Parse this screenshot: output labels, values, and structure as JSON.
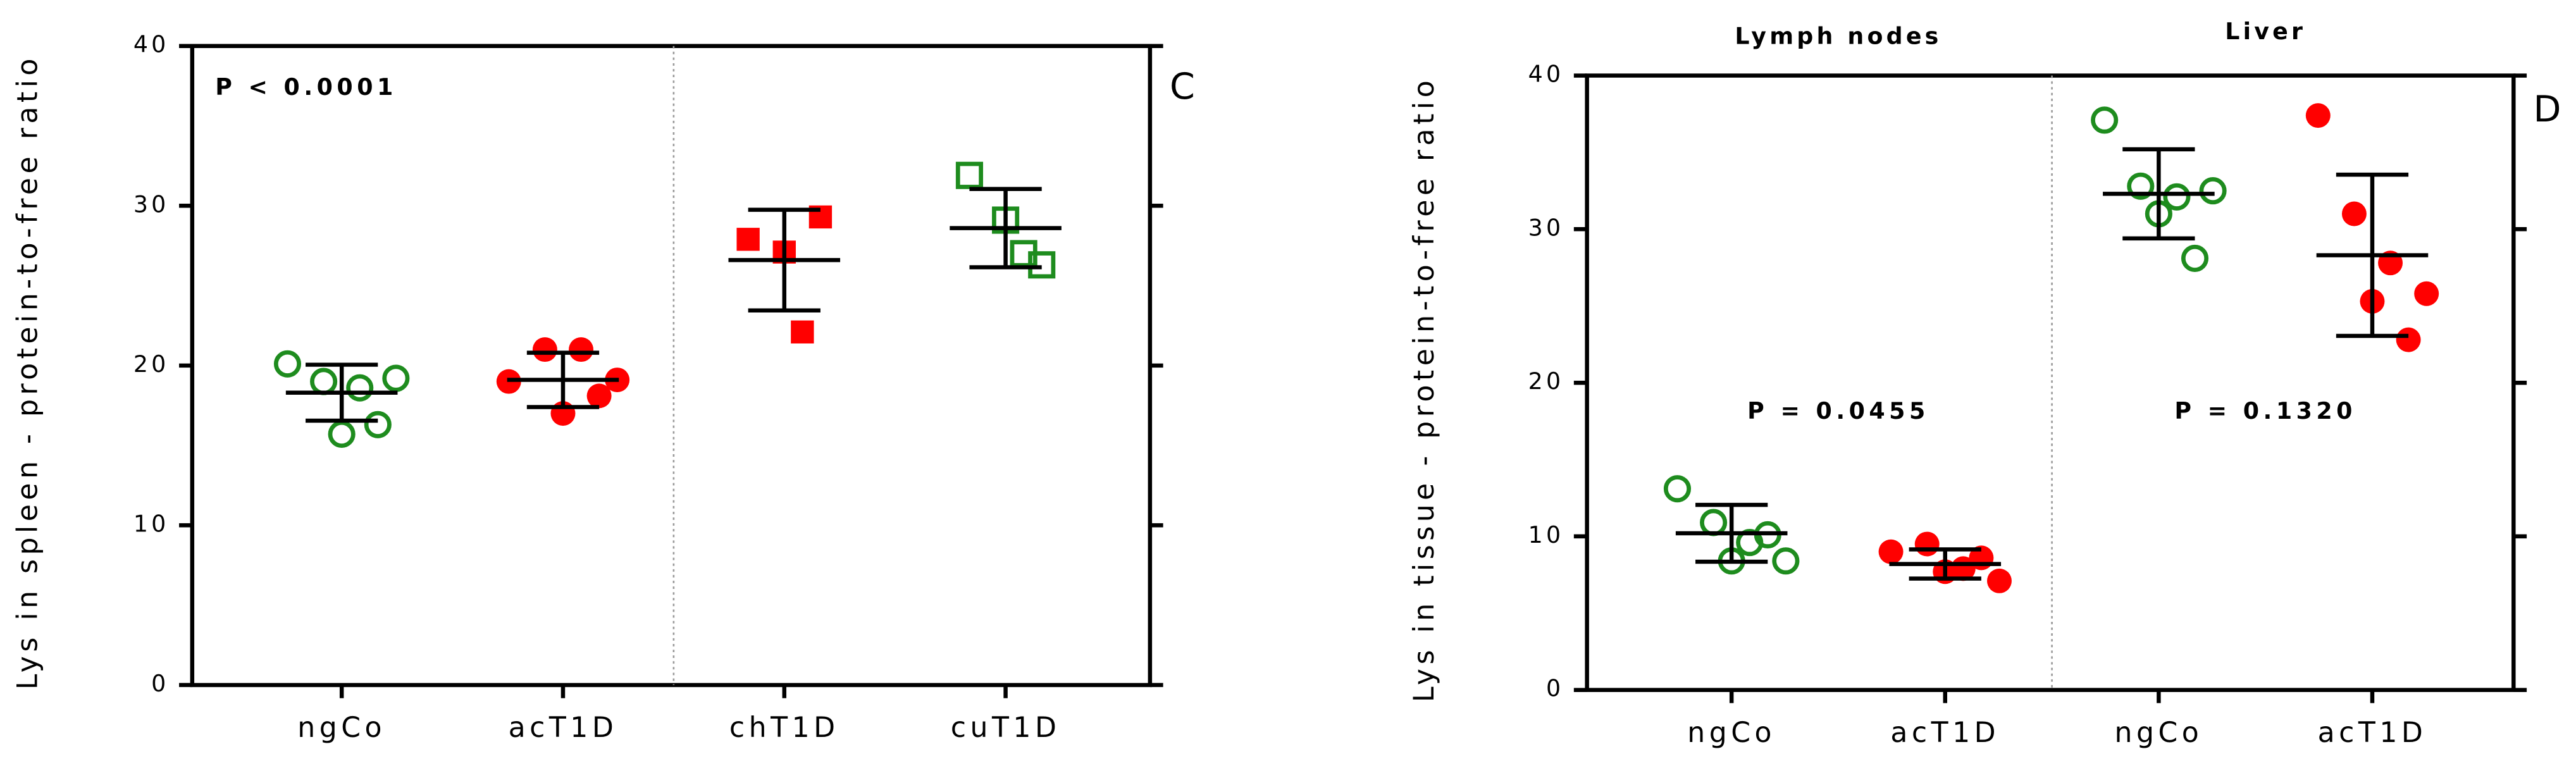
{
  "chart_data": [
    {
      "type": "dotplot",
      "y_label": "Lys in spleen - protein-to-free ratio",
      "annotation": "P < 0.0001",
      "panel_label": "C",
      "ylim": [
        0,
        40
      ],
      "yticks": [
        0,
        10,
        20,
        30,
        40
      ],
      "separator_after": 1,
      "groups": [
        {
          "category": "ngCo",
          "color": "#1e8c1e",
          "marker": "circle",
          "filled": false,
          "values": [
            20.1,
            19.0,
            18.6,
            19.2,
            15.7,
            16.3
          ],
          "mean": 18.3,
          "sd": 1.75
        },
        {
          "category": "acT1D",
          "color": "#ff0000",
          "marker": "circle",
          "filled": true,
          "values": [
            19.0,
            21.0,
            21.0,
            19.1,
            17.0,
            18.1
          ],
          "mean": 19.1,
          "sd": 1.7
        },
        {
          "category": "chT1D",
          "color": "#ff0000",
          "marker": "square",
          "filled": true,
          "values": [
            27.9,
            27.1,
            29.3,
            22.1
          ],
          "mean": 26.6,
          "sd": 3.15
        },
        {
          "category": "cuT1D",
          "color": "#1e8c1e",
          "marker": "square",
          "filled": false,
          "values": [
            31.9,
            29.1,
            26.3,
            27.0
          ],
          "mean": 28.6,
          "sd": 2.45
        }
      ]
    },
    {
      "type": "dotplot",
      "y_label": "Lys in tissue - protein-to-free ratio",
      "annotations": [
        "P = 0.0455",
        "P = 0.1320"
      ],
      "group_labels": [
        "Lymph nodes",
        "Liver"
      ],
      "panel_label": "D",
      "ylim": [
        0,
        40
      ],
      "yticks": [
        0,
        10,
        20,
        30,
        40
      ],
      "separator_after": 1,
      "groups": [
        {
          "category": "ngCo",
          "color": "#1e8c1e",
          "marker": "circle",
          "filled": false,
          "values": [
            13.1,
            10.9,
            9.6,
            8.4,
            8.4,
            10.1
          ],
          "mean": 10.2,
          "sd": 1.85
        },
        {
          "category": "acT1D",
          "color": "#ff0000",
          "marker": "circle",
          "filled": true,
          "values": [
            9.0,
            9.5,
            7.9,
            7.1,
            7.7,
            8.6
          ],
          "mean": 8.2,
          "sd": 0.95
        },
        {
          "category": "ngCo",
          "color": "#1e8c1e",
          "marker": "circle",
          "filled": false,
          "values": [
            37.1,
            32.8,
            32.1,
            32.5,
            31.0,
            28.1
          ],
          "mean": 32.3,
          "sd": 2.9
        },
        {
          "category": "acT1D",
          "color": "#ff0000",
          "marker": "circle",
          "filled": true,
          "values": [
            37.4,
            31.0,
            27.8,
            25.8,
            25.3,
            22.8
          ],
          "mean": 28.3,
          "sd": 5.25
        }
      ]
    }
  ]
}
